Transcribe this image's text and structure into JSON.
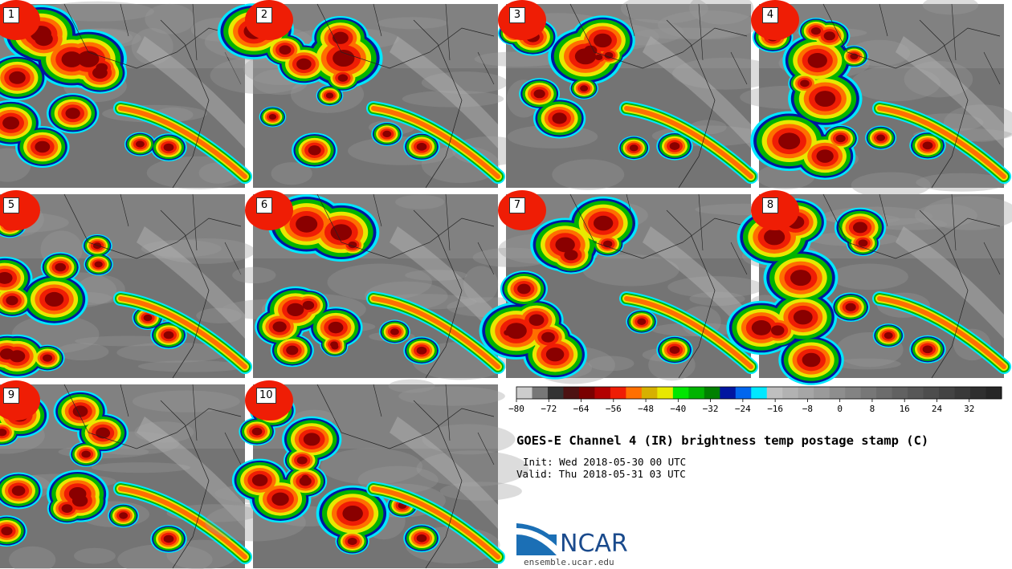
{
  "panels": [
    {
      "label": "1"
    },
    {
      "label": "2"
    },
    {
      "label": "3"
    },
    {
      "label": "4"
    },
    {
      "label": "5"
    },
    {
      "label": "6"
    },
    {
      "label": "7"
    },
    {
      "label": "8"
    },
    {
      "label": "9"
    },
    {
      "label": "10"
    }
  ],
  "title": "GOES-E Channel 4 (IR) brightness temp postage stamp (C)",
  "init_text": "Init: Wed 2018-05-30 00 UTC",
  "valid_text": "Valid: Thu 2018-05-31 03 UTC",
  "logo_text": "NCAR",
  "site": "ensemble.ucar.edu",
  "chart_data": {
    "type": "heatmap",
    "title": "GOES-E Channel 4 (IR) brightness temp postage stamp (C)",
    "panel_count": 10,
    "colorbar": {
      "ticks": [
        -80,
        -72,
        -64,
        -56,
        -48,
        -40,
        -32,
        -24,
        -16,
        -8,
        0,
        8,
        16,
        24,
        32
      ],
      "tick_labels": [
        "−80",
        "−72",
        "−64",
        "−56",
        "−48",
        "−40",
        "−32",
        "−24",
        "−16",
        "−8",
        "0",
        "8",
        "16",
        "24",
        "32"
      ],
      "range": [
        -80,
        40
      ],
      "colors": [
        "#cccccc",
        "#777777",
        "#333333",
        "#4d1212",
        "#7a0000",
        "#b30000",
        "#ef1d05",
        "#ff6f00",
        "#d6b000",
        "#e8e800",
        "#00e600",
        "#00b300",
        "#008000",
        "#0015a0",
        "#0066ee",
        "#00e8ff",
        "#bfbfbf",
        "#b2b2b2",
        "#a6a6a6",
        "#9a9a9a",
        "#8e8e8e",
        "#838383",
        "#777777",
        "#6c6c6c",
        "#616161",
        "#575757",
        "#4d4d4d",
        "#434343",
        "#393939",
        "#2f2f2f",
        "#262626"
      ]
    }
  }
}
